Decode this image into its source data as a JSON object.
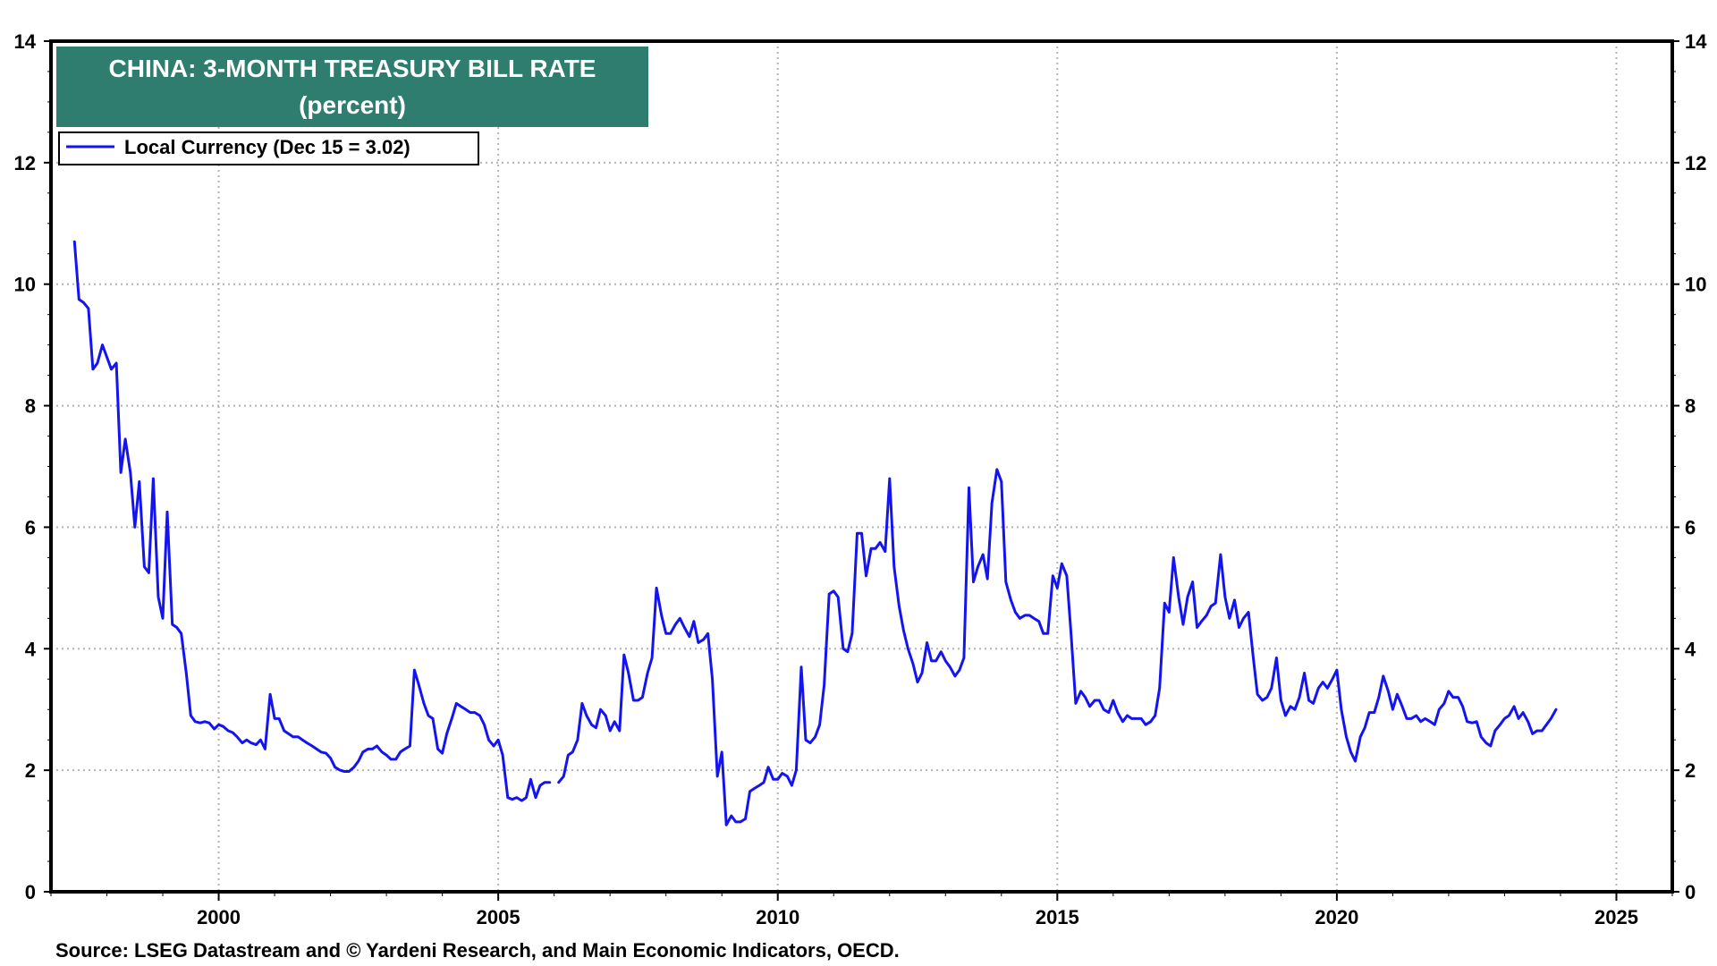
{
  "chart_data": {
    "type": "line",
    "title": "CHINA: 3-MONTH TREASURY BILL RATE",
    "subtitle": "(percent)",
    "xlabel": "",
    "ylabel": "",
    "xlim": [
      1997.0,
      2026.0
    ],
    "ylim": [
      0,
      14
    ],
    "y_ticks": [
      0,
      2,
      4,
      6,
      8,
      10,
      12,
      14
    ],
    "y_tick_labels": [
      "0",
      "2",
      "4",
      "6",
      "8",
      "10",
      "12",
      "14"
    ],
    "x_ticks": [
      2000,
      2005,
      2010,
      2015,
      2020,
      2025
    ],
    "x_tick_labels": [
      "2000",
      "2005",
      "2010",
      "2015",
      "2020",
      "2025"
    ],
    "y_axis_right": true,
    "grid": true,
    "legend_position": "top-left",
    "colors": {
      "series": "#1414f0",
      "title_box": "#2e7d6f",
      "grid": "#b4b4b4"
    },
    "series": [
      {
        "name": "Local Currency (Dec 15 = 3.02)",
        "segments": [
          {
            "x": [
              1997.42,
              1997.5,
              1997.58,
              1997.67,
              1997.75,
              1997.83,
              1997.92,
              1998.0,
              1998.08,
              1998.17,
              1998.25,
              1998.33,
              1998.42,
              1998.5,
              1998.58,
              1998.67,
              1998.75,
              1998.83,
              1998.92,
              1999.0,
              1999.08,
              1999.17,
              1999.25,
              1999.33,
              1999.42,
              1999.5,
              1999.58,
              1999.67,
              1999.75,
              1999.83,
              1999.92,
              2000.0,
              2000.08,
              2000.17,
              2000.25,
              2000.33,
              2000.42,
              2000.5,
              2000.58,
              2000.67,
              2000.75,
              2000.83,
              2000.92,
              2001.0,
              2001.08,
              2001.17,
              2001.25,
              2001.33,
              2001.42,
              2001.5,
              2001.58,
              2001.67,
              2001.75,
              2001.83,
              2001.92,
              2002.0,
              2002.08,
              2002.17,
              2002.25,
              2002.33,
              2002.42,
              2002.5,
              2002.58,
              2002.67,
              2002.75,
              2002.83,
              2002.92,
              2003.0,
              2003.08,
              2003.17,
              2003.25,
              2003.33,
              2003.42,
              2003.5,
              2003.58,
              2003.67,
              2003.75,
              2003.83,
              2003.92,
              2004.0,
              2004.08,
              2004.17,
              2004.25,
              2004.33,
              2004.42,
              2004.5,
              2004.58,
              2004.67,
              2004.75,
              2004.83,
              2004.92,
              2005.0,
              2005.08,
              2005.17,
              2005.25,
              2005.33,
              2005.42,
              2005.5,
              2005.58,
              2005.67,
              2005.75,
              2005.83,
              2005.92
            ],
            "y": [
              10.7,
              9.75,
              9.7,
              9.6,
              8.6,
              8.7,
              9.0,
              8.8,
              8.6,
              8.7,
              6.9,
              7.45,
              6.9,
              6.0,
              6.75,
              5.35,
              5.25,
              6.8,
              4.85,
              4.5,
              6.25,
              4.4,
              4.35,
              4.25,
              3.6,
              2.9,
              2.8,
              2.78,
              2.8,
              2.78,
              2.68,
              2.75,
              2.72,
              2.65,
              2.62,
              2.55,
              2.45,
              2.5,
              2.45,
              2.42,
              2.5,
              2.35,
              3.25,
              2.85,
              2.85,
              2.65,
              2.6,
              2.55,
              2.55,
              2.5,
              2.45,
              2.4,
              2.35,
              2.3,
              2.28,
              2.2,
              2.05,
              2.0,
              1.98,
              1.98,
              2.05,
              2.15,
              2.3,
              2.35,
              2.35,
              2.4,
              2.3,
              2.25,
              2.18,
              2.18,
              2.3,
              2.35,
              2.4,
              3.65,
              3.4,
              3.1,
              2.9,
              2.85,
              2.35,
              2.28,
              2.6,
              2.85,
              3.1,
              3.05,
              3.0,
              2.95,
              2.95,
              2.9,
              2.75,
              2.5,
              2.4,
              2.5,
              2.25,
              1.55,
              1.52,
              1.55,
              1.5,
              1.55,
              1.85,
              1.55,
              1.75,
              1.8,
              1.8
            ]
          },
          {
            "x": [
              2006.08,
              2006.17,
              2006.25,
              2006.33,
              2006.42,
              2006.5,
              2006.58,
              2006.67,
              2006.75,
              2006.83,
              2006.92,
              2007.0,
              2007.08,
              2007.17,
              2007.25,
              2007.33,
              2007.42,
              2007.5,
              2007.58,
              2007.67,
              2007.75,
              2007.83,
              2007.92,
              2008.0,
              2008.08,
              2008.17,
              2008.25,
              2008.33,
              2008.42,
              2008.5,
              2008.58,
              2008.67,
              2008.75,
              2008.83,
              2008.92,
              2009.0,
              2009.08,
              2009.17,
              2009.25,
              2009.33,
              2009.42,
              2009.5,
              2009.58,
              2009.67,
              2009.75,
              2009.83,
              2009.92,
              2010.0,
              2010.08,
              2010.17,
              2010.25,
              2010.33,
              2010.42,
              2010.5,
              2010.58,
              2010.67,
              2010.75,
              2010.83,
              2010.92,
              2011.0,
              2011.08,
              2011.17,
              2011.25,
              2011.33,
              2011.42,
              2011.5,
              2011.58,
              2011.67,
              2011.75,
              2011.83,
              2011.92,
              2012.0,
              2012.08,
              2012.17,
              2012.25,
              2012.33,
              2012.42,
              2012.5,
              2012.58,
              2012.67,
              2012.75,
              2012.83,
              2012.92,
              2013.0,
              2013.08,
              2013.17,
              2013.25,
              2013.33,
              2013.42,
              2013.5,
              2013.58,
              2013.67,
              2013.75,
              2013.83,
              2013.92,
              2014.0,
              2014.08,
              2014.17,
              2014.25,
              2014.33,
              2014.42,
              2014.5,
              2014.58,
              2014.67,
              2014.75,
              2014.83,
              2014.92,
              2015.0,
              2015.08,
              2015.17,
              2015.25,
              2015.33,
              2015.42,
              2015.5,
              2015.58,
              2015.67,
              2015.75,
              2015.83,
              2015.92,
              2016.0,
              2016.08,
              2016.17,
              2016.25,
              2016.33,
              2016.42,
              2016.5,
              2016.58,
              2016.67,
              2016.75,
              2016.83,
              2016.92,
              2017.0,
              2017.08,
              2017.17,
              2017.25,
              2017.33,
              2017.42,
              2017.5,
              2017.58,
              2017.67,
              2017.75,
              2017.83,
              2017.92,
              2018.0,
              2018.08,
              2018.17,
              2018.25,
              2018.33,
              2018.42,
              2018.5,
              2018.58,
              2018.67,
              2018.75,
              2018.83,
              2018.92,
              2019.0,
              2019.08,
              2019.17,
              2019.25,
              2019.33,
              2019.42,
              2019.5,
              2019.58,
              2019.67,
              2019.75,
              2019.83,
              2019.92,
              2020.0,
              2020.08,
              2020.17,
              2020.25,
              2020.33,
              2020.42,
              2020.5,
              2020.58,
              2020.67,
              2020.75,
              2020.83,
              2020.92,
              2021.0,
              2021.08,
              2021.17,
              2021.25,
              2021.33,
              2021.42,
              2021.5,
              2021.58,
              2021.67,
              2021.75,
              2021.83,
              2021.92,
              2022.0,
              2022.08,
              2022.17,
              2022.25,
              2022.33,
              2022.42,
              2022.5,
              2022.58,
              2022.67,
              2022.75,
              2022.83,
              2022.92,
              2023.0,
              2023.08,
              2023.17,
              2023.25,
              2023.33,
              2023.42,
              2023.5,
              2023.58,
              2023.67,
              2023.75,
              2023.83,
              2023.92
            ],
            "y": [
              1.8,
              1.9,
              2.25,
              2.3,
              2.5,
              3.1,
              2.9,
              2.75,
              2.7,
              3.0,
              2.9,
              2.65,
              2.8,
              2.65,
              3.9,
              3.6,
              3.15,
              3.15,
              3.2,
              3.6,
              3.85,
              5.0,
              4.55,
              4.25,
              4.25,
              4.4,
              4.5,
              4.35,
              4.2,
              4.45,
              4.1,
              4.15,
              4.25,
              3.5,
              1.9,
              2.3,
              1.1,
              1.25,
              1.15,
              1.15,
              1.2,
              1.65,
              1.7,
              1.75,
              1.8,
              2.05,
              1.85,
              1.85,
              1.95,
              1.9,
              1.75,
              2.0,
              3.7,
              2.5,
              2.45,
              2.55,
              2.75,
              3.4,
              4.9,
              4.95,
              4.85,
              4.0,
              3.95,
              4.25,
              5.9,
              5.9,
              5.2,
              5.65,
              5.65,
              5.75,
              5.6,
              6.8,
              5.35,
              4.7,
              4.3,
              4.0,
              3.75,
              3.45,
              3.6,
              4.1,
              3.8,
              3.8,
              3.95,
              3.8,
              3.7,
              3.55,
              3.65,
              3.85,
              6.65,
              5.1,
              5.35,
              5.55,
              5.15,
              6.4,
              6.95,
              6.75,
              5.1,
              4.8,
              4.6,
              4.5,
              4.55,
              4.55,
              4.5,
              4.45,
              4.25,
              4.25,
              5.2,
              5.0,
              5.4,
              5.2,
              4.2,
              3.1,
              3.3,
              3.2,
              3.05,
              3.15,
              3.15,
              3.0,
              2.95,
              3.15,
              2.95,
              2.8,
              2.9,
              2.85,
              2.85,
              2.85,
              2.75,
              2.8,
              2.9,
              3.35,
              4.75,
              4.6,
              5.5,
              4.85,
              4.4,
              4.85,
              5.1,
              4.35,
              4.45,
              4.55,
              4.7,
              4.75,
              5.55,
              4.85,
              4.5,
              4.8,
              4.35,
              4.5,
              4.6,
              3.9,
              3.25,
              3.15,
              3.2,
              3.35,
              3.85,
              3.15,
              2.9,
              3.05,
              3.0,
              3.2,
              3.6,
              3.15,
              3.1,
              3.35,
              3.45,
              3.35,
              3.5,
              3.65,
              3.0,
              2.55,
              2.3,
              2.15,
              2.55,
              2.7,
              2.95,
              2.95,
              3.2,
              3.55,
              3.3,
              3.0,
              3.25,
              3.05,
              2.85,
              2.85,
              2.9,
              2.8,
              2.85,
              2.8,
              2.75,
              3.0,
              3.1,
              3.3,
              3.2,
              3.2,
              3.05,
              2.8,
              2.78,
              2.8,
              2.55,
              2.45,
              2.4,
              2.65,
              2.75,
              2.85,
              2.9,
              3.05,
              2.85,
              2.95,
              2.8,
              2.6,
              2.65,
              2.65,
              2.75,
              2.85,
              3.0
            ]
          }
        ]
      }
    ],
    "source": "Source: LSEG Datastream and © Yardeni Research, and Main Economic Indicators, OECD."
  }
}
